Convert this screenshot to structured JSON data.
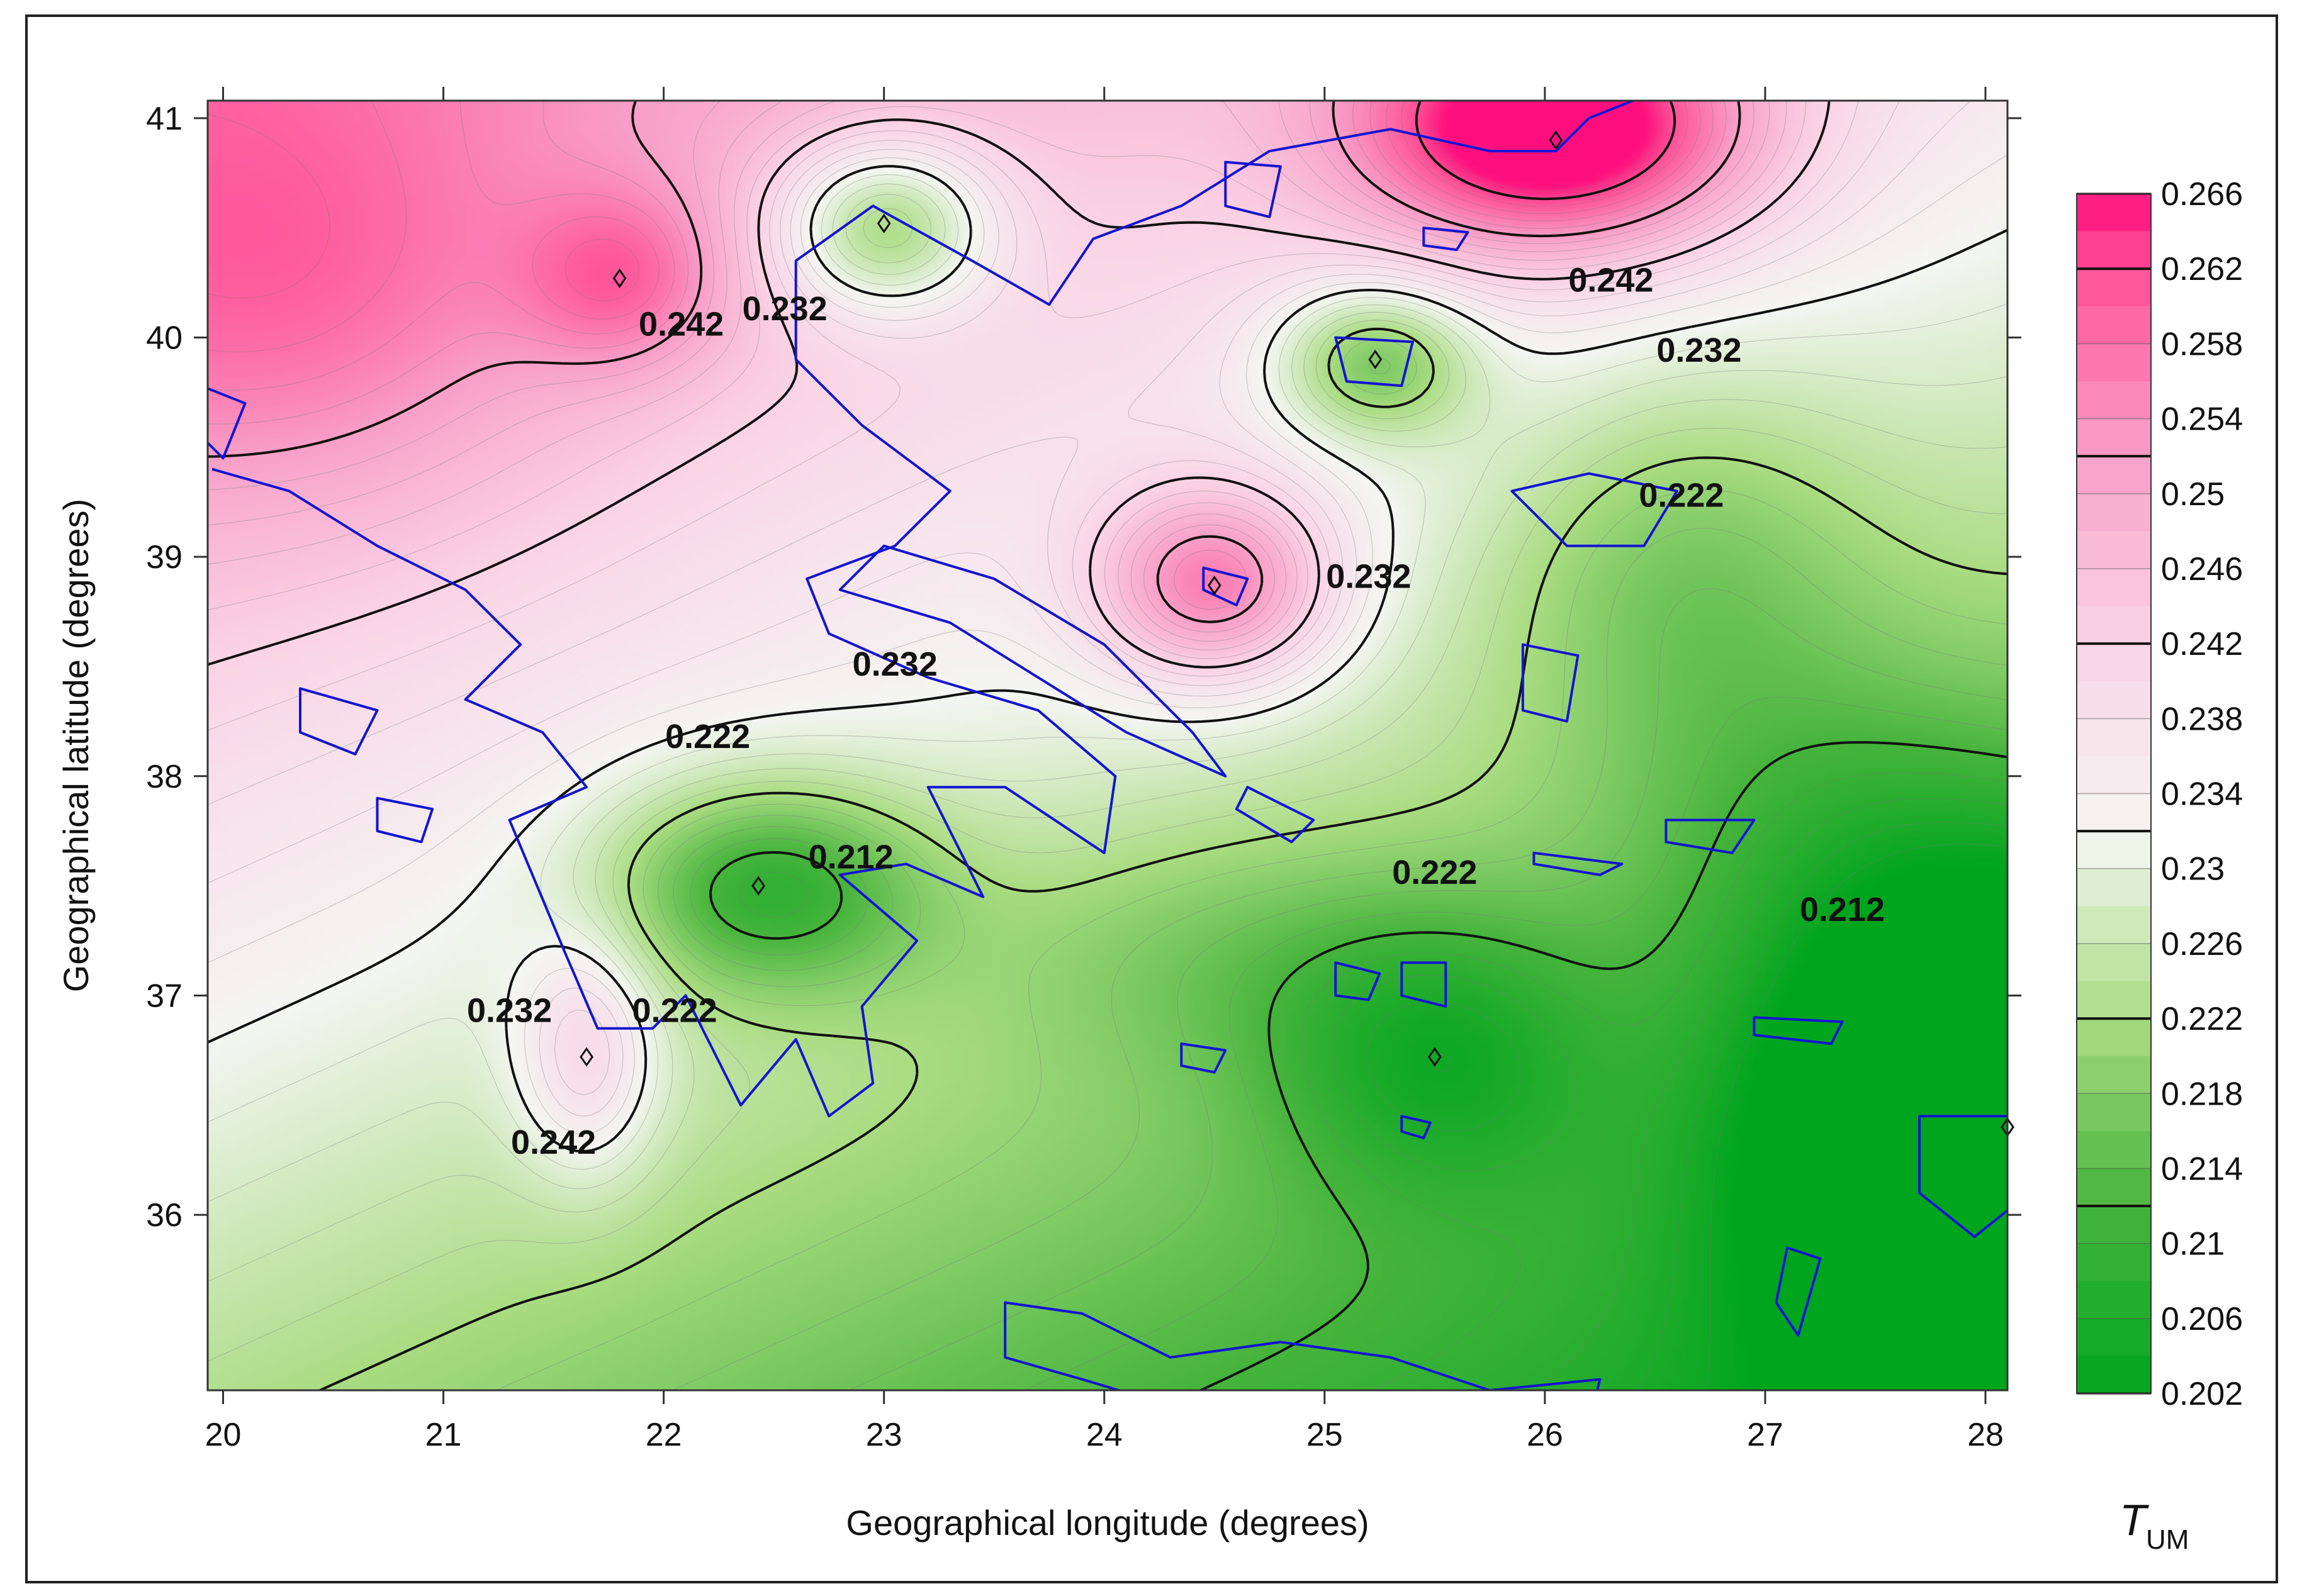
{
  "chart_data": {
    "type": "heatmap",
    "x_axis": {
      "label": "Geographical longitude (degrees)",
      "range": [
        19.93,
        28.1
      ],
      "ticks": [
        20,
        21,
        22,
        23,
        24,
        25,
        26,
        27,
        28
      ]
    },
    "y_axis": {
      "label": "Geographical latitude (degrees)",
      "range": [
        35.2,
        41.08
      ],
      "ticks": [
        36,
        37,
        38,
        39,
        40,
        41
      ]
    },
    "colorbar": {
      "title_main": "T",
      "title_sub": "UM",
      "range": [
        0.202,
        0.266
      ],
      "labels": [
        "0.266",
        "0.262",
        "0.258",
        "0.254",
        "0.25",
        "0.246",
        "0.242",
        "0.238",
        "0.234",
        "0.23",
        "0.226",
        "0.222",
        "0.218",
        "0.214",
        "0.21",
        "0.206",
        "0.202"
      ],
      "highlighted_levels": [
        0.262,
        0.252,
        0.242,
        0.232,
        0.222,
        0.212
      ],
      "low_color": "#00a51e",
      "mid_color": "#f4f6f2",
      "high_color": "#ff0f7e"
    },
    "contour_labels": [
      {
        "text": "0.242",
        "lon": 26.3,
        "lat": 40.25
      },
      {
        "text": "0.232",
        "lon": 26.7,
        "lat": 39.93
      },
      {
        "text": "0.222",
        "lon": 26.62,
        "lat": 39.27
      },
      {
        "text": "0.242",
        "lon": 22.08,
        "lat": 40.05
      },
      {
        "text": "0.232",
        "lon": 22.55,
        "lat": 40.12
      },
      {
        "text": "0.232",
        "lon": 25.2,
        "lat": 38.9
      },
      {
        "text": "0.232",
        "lon": 23.05,
        "lat": 38.5
      },
      {
        "text": "0.222",
        "lon": 22.2,
        "lat": 38.17
      },
      {
        "text": "0.212",
        "lon": 22.85,
        "lat": 37.62
      },
      {
        "text": "0.222",
        "lon": 25.5,
        "lat": 37.55
      },
      {
        "text": "0.212",
        "lon": 27.35,
        "lat": 37.38
      },
      {
        "text": "0.232",
        "lon": 21.3,
        "lat": 36.92
      },
      {
        "text": "0.222",
        "lon": 22.05,
        "lat": 36.92
      },
      {
        "text": "0.242",
        "lon": 21.5,
        "lat": 36.32
      }
    ],
    "field_extrema": [
      {
        "kind": "max",
        "lon": 26.05,
        "lat": 40.9,
        "value": 0.266
      },
      {
        "kind": "max",
        "lon": 24.5,
        "lat": 38.87,
        "value": 0.252
      },
      {
        "kind": "max",
        "lon": 21.8,
        "lat": 40.27,
        "value": 0.25
      },
      {
        "kind": "max",
        "lon": 21.65,
        "lat": 36.72,
        "value": 0.246
      },
      {
        "kind": "min",
        "lon": 23.0,
        "lat": 40.52,
        "value": 0.21
      },
      {
        "kind": "min",
        "lon": 25.23,
        "lat": 39.9,
        "value": 0.214
      },
      {
        "kind": "min",
        "lon": 22.43,
        "lat": 37.5,
        "value": 0.208
      },
      {
        "kind": "min",
        "lon": 25.5,
        "lat": 36.72,
        "value": 0.214
      },
      {
        "kind": "min",
        "lon": 28.1,
        "lat": 36.4,
        "value": 0.202
      }
    ],
    "coastline_color": "#1414d2"
  }
}
